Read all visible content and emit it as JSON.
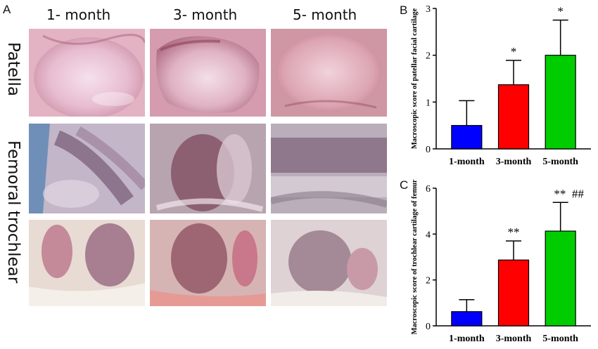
{
  "panel_a": {
    "letter": "A",
    "columns": [
      "1- month",
      "3- month",
      "5- month"
    ],
    "rows": [
      "Patella",
      "Femoral trochlear"
    ]
  },
  "chart_data": [
    {
      "panel": "B",
      "type": "bar",
      "categories": [
        "1-month",
        "3-month",
        "5-month"
      ],
      "values": [
        0.5,
        1.37,
        2.0
      ],
      "errors": [
        0.53,
        0.52,
        0.75
      ],
      "colors": [
        "#0000ff",
        "#ff0000",
        "#00cc00"
      ],
      "annotations": [
        "",
        "*",
        "*"
      ],
      "ylabel": "Macroscopic score of patellar facial cartilage",
      "ylim": [
        0,
        3
      ],
      "yticks": [
        0,
        1,
        2,
        3
      ],
      "grid": false
    },
    {
      "panel": "C",
      "type": "bar",
      "categories": [
        "1-month",
        "3-month",
        "5-month"
      ],
      "values": [
        0.62,
        2.87,
        4.13
      ],
      "errors": [
        0.52,
        0.83,
        1.25
      ],
      "colors": [
        "#0000ff",
        "#ff0000",
        "#00cc00"
      ],
      "annotations": [
        "",
        "**",
        "**  ##"
      ],
      "ylabel": "Macroscopic score of trochlear cartilage of femur",
      "ylim": [
        0,
        6
      ],
      "yticks": [
        0,
        2,
        4,
        6
      ],
      "grid": false
    }
  ]
}
